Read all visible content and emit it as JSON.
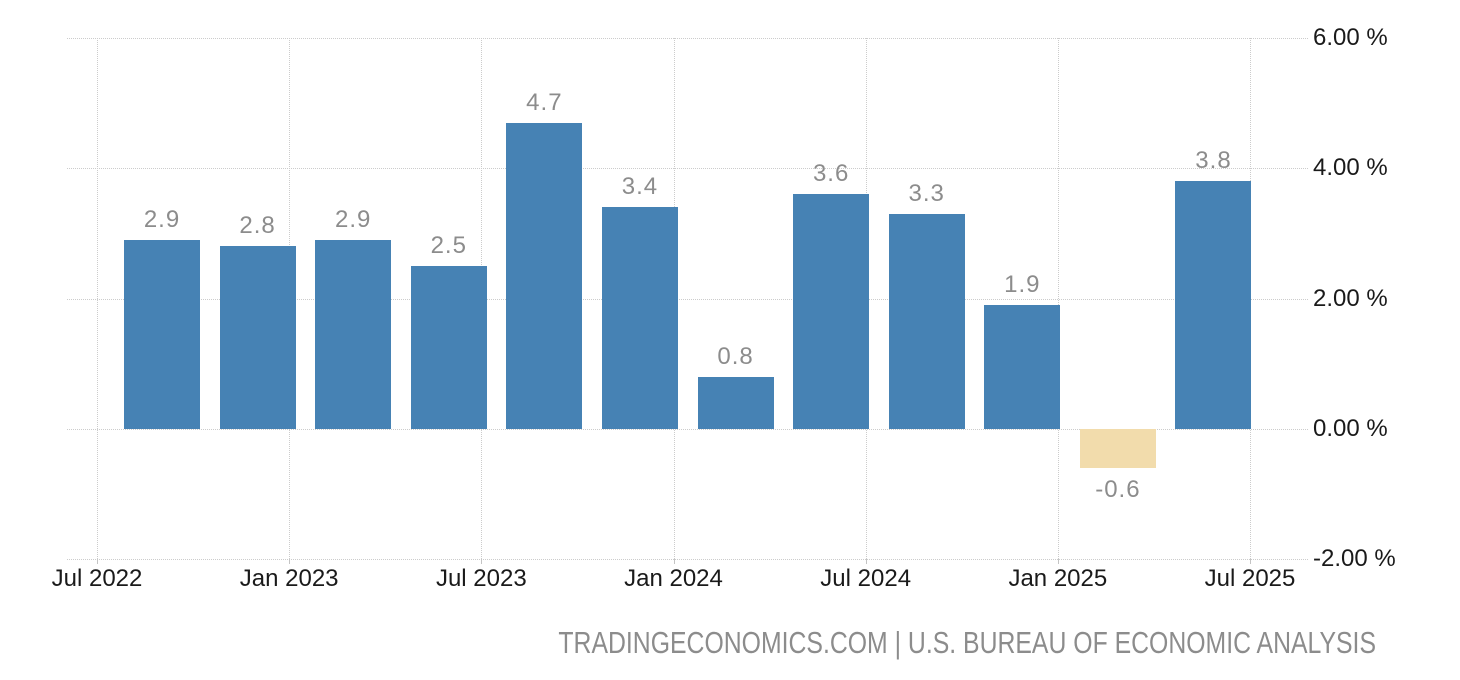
{
  "chart_data": {
    "type": "bar",
    "values": [
      2.9,
      2.8,
      2.9,
      2.5,
      4.7,
      3.4,
      0.8,
      3.6,
      3.3,
      1.9,
      -0.6,
      3.8
    ],
    "value_labels": [
      "2.9",
      "2.8",
      "2.9",
      "2.5",
      "4.7",
      "3.4",
      "0.8",
      "3.6",
      "3.3",
      "1.9",
      "-0.6",
      "3.8"
    ],
    "x_tick_labels": [
      "Jul 2022",
      "Jan 2023",
      "Jul 2023",
      "Jan 2024",
      "Jul 2024",
      "Jan 2025",
      "Jul 2025"
    ],
    "y_tick_labels": [
      "6.00 %",
      "4.00 %",
      "2.00 %",
      "0.00 %",
      "-2.00 %"
    ],
    "y_tick_values": [
      6,
      4,
      2,
      0,
      -2
    ],
    "ylim": [
      -2,
      6
    ],
    "grid": "dotted",
    "legend": "none",
    "colors": {
      "positive_bar": "#4682B4",
      "negative_bar": "#F2DCAC",
      "value_label": "#8C8C8C",
      "axis_label": "#1A1A1A",
      "gridline": "#CCCCCC"
    }
  },
  "footer": {
    "attribution": "TRADINGECONOMICS.COM | U.S. BUREAU OF ECONOMIC ANALYSIS"
  }
}
